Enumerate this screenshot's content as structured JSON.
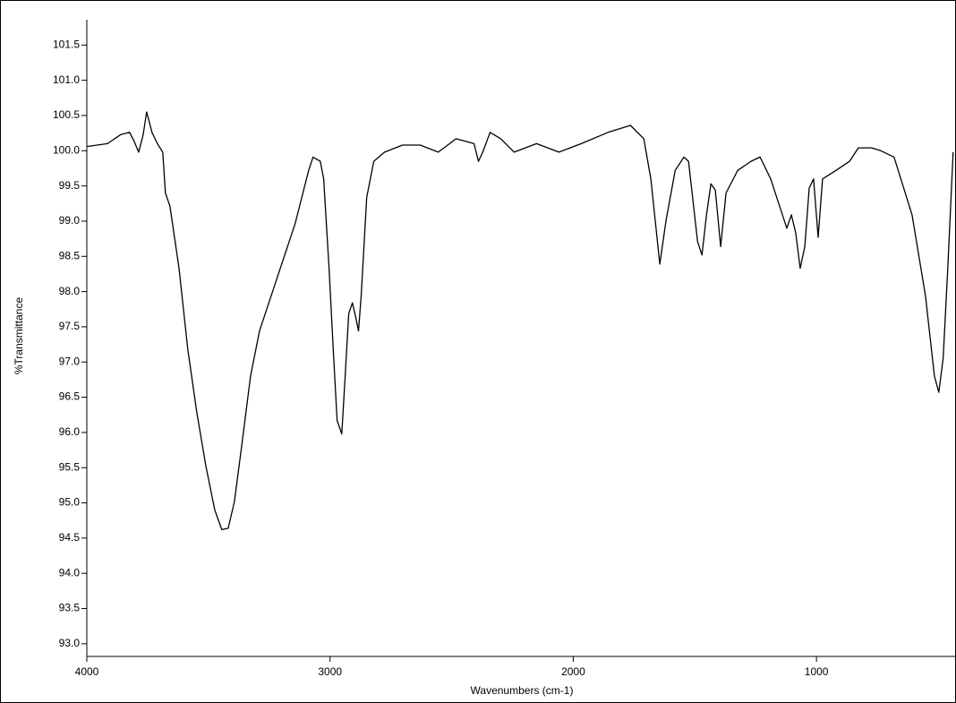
{
  "chart_data": {
    "type": "line",
    "x_label": "Wavenumbers (cm-1)",
    "y_label": "%Transmittance",
    "color": "#000000",
    "xlim": [
      4000,
      430
    ],
    "ylim": [
      92.82,
      101.86
    ],
    "xticks": [
      4000,
      3000,
      2000,
      1000
    ],
    "yticks": [
      {
        "value": 93,
        "label": "93.0"
      },
      93.5,
      {
        "value": 94,
        "label": "94.0"
      },
      94.5,
      {
        "value": 95,
        "label": "95.0"
      },
      95.5,
      {
        "value": 96,
        "label": "96.0"
      },
      96.5,
      {
        "value": 97,
        "label": "97.0"
      },
      97.5,
      {
        "value": 98,
        "label": "98.0"
      },
      98.5,
      {
        "value": 99,
        "label": "99.0"
      },
      99.5,
      {
        "value": 100,
        "label": "100.0"
      },
      100.5,
      {
        "value": 101,
        "label": "101.0"
      },
      101.5
    ],
    "x": [
      4000,
      3915,
      3860,
      3824,
      3805,
      3787,
      3768,
      3754,
      3732,
      3710,
      3688,
      3677,
      3658,
      3621,
      3585,
      3548,
      3511,
      3474,
      3445,
      3419,
      3393,
      3364,
      3327,
      3290,
      3217,
      3144,
      3088,
      3070,
      3040,
      3026,
      3004,
      2985,
      2971,
      2952,
      2938,
      2923,
      2908,
      2894,
      2883,
      2872,
      2849,
      2820,
      2776,
      2702,
      2629,
      2555,
      2482,
      2408,
      2390,
      2372,
      2342,
      2298,
      2243,
      2151,
      2059,
      1967,
      1857,
      1765,
      1710,
      1681,
      1644,
      1618,
      1581,
      1545,
      1526,
      1489,
      1471,
      1452,
      1434,
      1416,
      1394,
      1372,
      1324,
      1269,
      1232,
      1188,
      1140,
      1122,
      1103,
      1085,
      1067,
      1048,
      1030,
      1012,
      993,
      975,
      920,
      864,
      828,
      773,
      736,
      681,
      607,
      552,
      515,
      497,
      479,
      460,
      438
    ],
    "values": [
      100.06,
      100.1,
      100.23,
      100.26,
      100.13,
      99.98,
      100.23,
      100.55,
      100.26,
      100.1,
      99.98,
      99.4,
      99.21,
      98.33,
      97.18,
      96.29,
      95.53,
      94.9,
      94.62,
      94.64,
      95.02,
      95.79,
      96.8,
      97.44,
      98.2,
      98.96,
      99.72,
      99.91,
      99.85,
      99.6,
      98.33,
      97.06,
      96.17,
      95.98,
      96.8,
      97.69,
      97.84,
      97.63,
      97.44,
      97.94,
      99.34,
      99.85,
      99.98,
      100.08,
      100.08,
      99.98,
      100.17,
      100.1,
      99.85,
      99.98,
      100.26,
      100.17,
      99.98,
      100.1,
      99.98,
      100.1,
      100.26,
      100.36,
      100.17,
      99.6,
      98.39,
      99.02,
      99.72,
      99.91,
      99.85,
      98.71,
      98.52,
      99.09,
      99.53,
      99.44,
      98.64,
      99.4,
      99.72,
      99.85,
      99.91,
      99.6,
      99.09,
      98.9,
      99.09,
      98.83,
      98.33,
      98.64,
      99.47,
      99.6,
      98.77,
      99.6,
      99.72,
      99.85,
      100.04,
      100.04,
      100.0,
      99.91,
      99.09,
      97.94,
      96.8,
      96.57,
      97.06,
      98.33,
      99.98
    ]
  }
}
